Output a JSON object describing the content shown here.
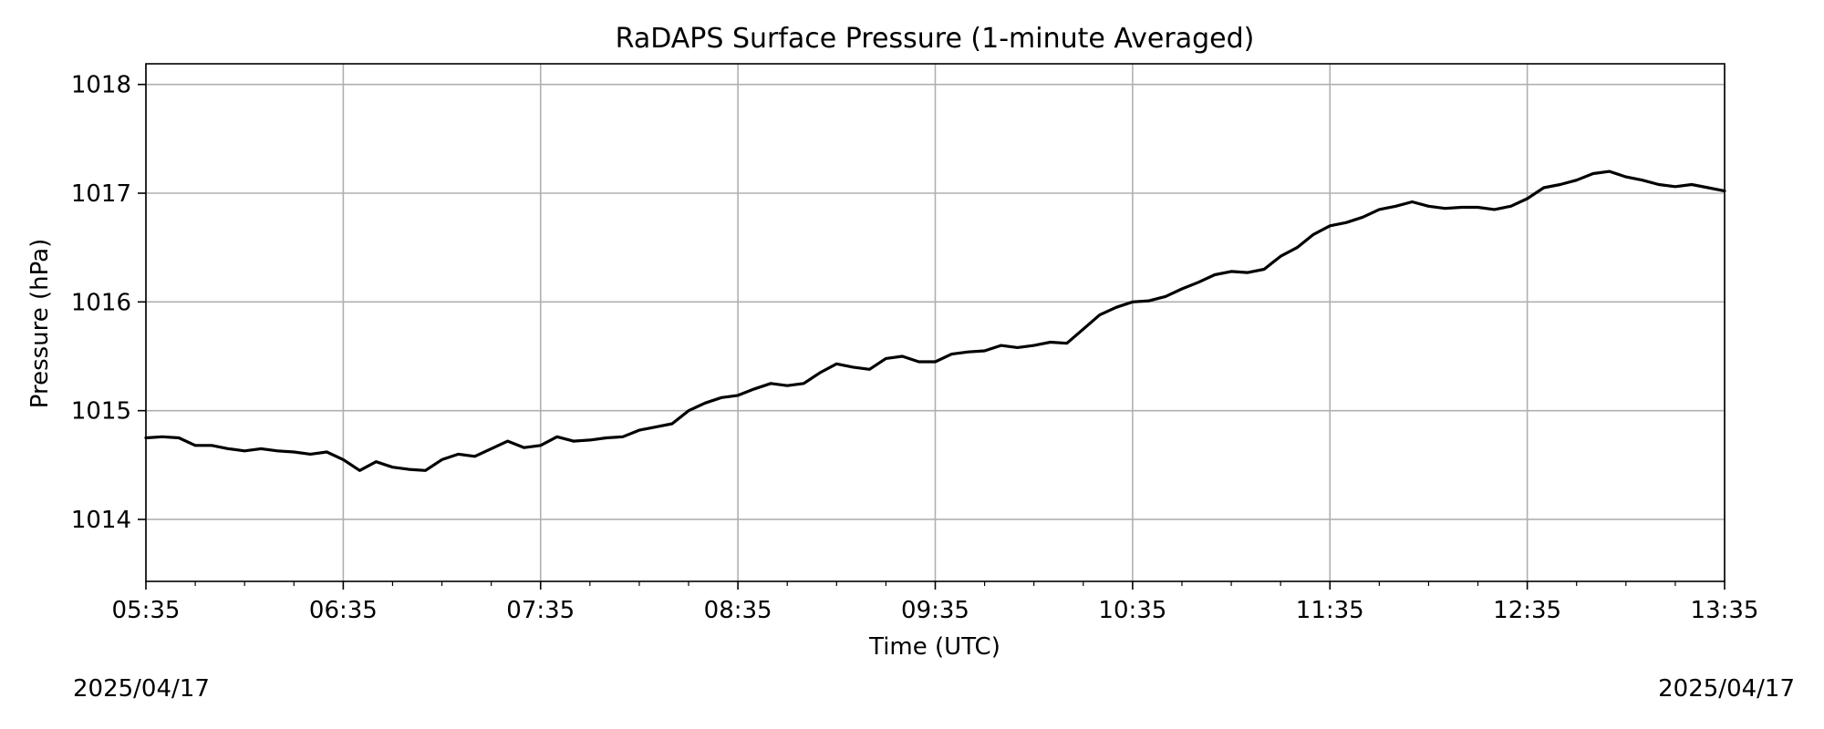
{
  "chart_data": {
    "type": "line",
    "title": "RaDAPS Surface Pressure (1-minute Averaged)",
    "xlabel": "Time (UTC)",
    "ylabel": "Pressure (hPa)",
    "xlim": [
      "05:35",
      "13:35"
    ],
    "ylim": [
      1013.43,
      1018.19
    ],
    "x_ticks": [
      "05:35",
      "06:35",
      "07:35",
      "08:35",
      "09:35",
      "10:35",
      "11:35",
      "12:35",
      "13:35"
    ],
    "y_ticks": [
      1014,
      1015,
      1016,
      1017,
      1018
    ],
    "grid": true,
    "legend": "none",
    "line_color": "#000000",
    "date_left": "2025/04/17",
    "date_right": "2025/04/17",
    "series": [
      {
        "x": [
          "05:35",
          "05:40",
          "05:45",
          "05:50",
          "05:55",
          "06:00",
          "06:05",
          "06:10",
          "06:15",
          "06:20",
          "06:25",
          "06:30",
          "06:35",
          "06:40",
          "06:45",
          "06:50",
          "06:55",
          "07:00",
          "07:05",
          "07:10",
          "07:15",
          "07:20",
          "07:25",
          "07:30",
          "07:35",
          "07:40",
          "07:45",
          "07:50",
          "07:55",
          "08:00",
          "08:05",
          "08:10",
          "08:15",
          "08:20",
          "08:25",
          "08:30",
          "08:35",
          "08:40",
          "08:45",
          "08:50",
          "08:55",
          "09:00",
          "09:05",
          "09:10",
          "09:15",
          "09:20",
          "09:25",
          "09:30",
          "09:35",
          "09:40",
          "09:45",
          "09:50",
          "09:55",
          "10:00",
          "10:05",
          "10:10",
          "10:15",
          "10:20",
          "10:25",
          "10:30",
          "10:35",
          "10:40",
          "10:45",
          "10:50",
          "10:55",
          "11:00",
          "11:05",
          "11:10",
          "11:15",
          "11:20",
          "11:25",
          "11:30",
          "11:35",
          "11:40",
          "11:45",
          "11:50",
          "11:55",
          "12:00",
          "12:05",
          "12:10",
          "12:15",
          "12:20",
          "12:25",
          "12:30",
          "12:35",
          "12:40",
          "12:45",
          "12:50",
          "12:55",
          "13:00",
          "13:05",
          "13:10",
          "13:15",
          "13:20",
          "13:25",
          "13:30",
          "13:35"
        ],
        "values": [
          1014.75,
          1014.76,
          1014.75,
          1014.68,
          1014.68,
          1014.65,
          1014.63,
          1014.65,
          1014.63,
          1014.62,
          1014.6,
          1014.62,
          1014.55,
          1014.45,
          1014.53,
          1014.48,
          1014.46,
          1014.45,
          1014.55,
          1014.6,
          1014.58,
          1014.65,
          1014.72,
          1014.66,
          1014.68,
          1014.76,
          1014.72,
          1014.73,
          1014.75,
          1014.76,
          1014.82,
          1014.85,
          1014.88,
          1015.0,
          1015.07,
          1015.12,
          1015.14,
          1015.2,
          1015.25,
          1015.23,
          1015.25,
          1015.35,
          1015.43,
          1015.4,
          1015.38,
          1015.48,
          1015.5,
          1015.45,
          1015.45,
          1015.52,
          1015.54,
          1015.55,
          1015.6,
          1015.58,
          1015.6,
          1015.63,
          1015.62,
          1015.75,
          1015.88,
          1015.95,
          1016.0,
          1016.01,
          1016.05,
          1016.12,
          1016.18,
          1016.25,
          1016.28,
          1016.27,
          1016.3,
          1016.42,
          1016.5,
          1016.62,
          1016.7,
          1016.73,
          1016.78,
          1016.85,
          1016.88,
          1016.92,
          1016.88,
          1016.86,
          1016.87,
          1016.87,
          1016.85,
          1016.88,
          1016.95,
          1017.05,
          1017.08,
          1017.12,
          1017.18,
          1017.2,
          1017.15,
          1017.12,
          1017.08,
          1017.06,
          1017.08,
          1017.05,
          1017.02
        ]
      }
    ]
  }
}
